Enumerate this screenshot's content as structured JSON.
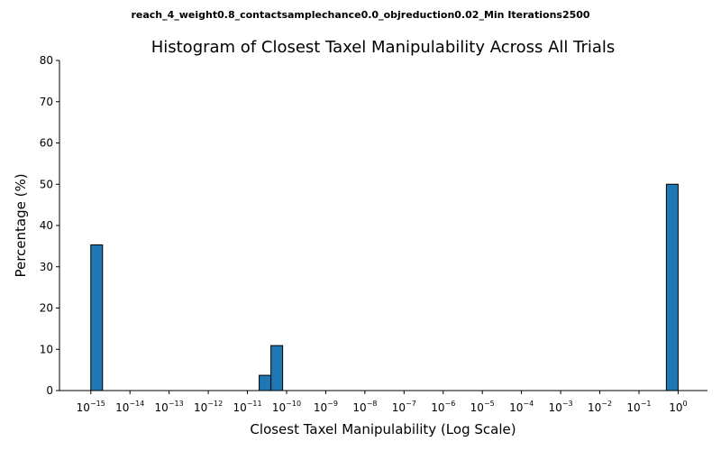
{
  "chart_data": {
    "type": "bar",
    "suptitle": "reach_4_weight0.8_contactsamplechance0.0_objreduction0.02_Min Iterations2500",
    "title": "Histogram of Closest Taxel Manipulability Across All Trials",
    "xlabel": "Closest Taxel Manipulability (Log Scale)",
    "ylabel": "Percentage (%)",
    "xscale": "log",
    "xlim_log10": [
      -15.8,
      0.75
    ],
    "ylim": [
      0,
      80
    ],
    "yticks": [
      "0",
      "10",
      "20",
      "30",
      "40",
      "50",
      "60",
      "70",
      "80"
    ],
    "xticks": [
      {
        "base": "10",
        "exp": "−15",
        "log10": -15
      },
      {
        "base": "10",
        "exp": "−14",
        "log10": -14
      },
      {
        "base": "10",
        "exp": "−13",
        "log10": -13
      },
      {
        "base": "10",
        "exp": "−12",
        "log10": -12
      },
      {
        "base": "10",
        "exp": "−11",
        "log10": -11
      },
      {
        "base": "10",
        "exp": "−10",
        "log10": -10
      },
      {
        "base": "10",
        "exp": "−9",
        "log10": -9
      },
      {
        "base": "10",
        "exp": "−8",
        "log10": -8
      },
      {
        "base": "10",
        "exp": "−7",
        "log10": -7
      },
      {
        "base": "10",
        "exp": "−6",
        "log10": -6
      },
      {
        "base": "10",
        "exp": "−5",
        "log10": -5
      },
      {
        "base": "10",
        "exp": "−4",
        "log10": -4
      },
      {
        "base": "10",
        "exp": "−3",
        "log10": -3
      },
      {
        "base": "10",
        "exp": "−2",
        "log10": -2
      },
      {
        "base": "10",
        "exp": "−1",
        "log10": -1
      },
      {
        "base": "10",
        "exp": "0",
        "log10": 0
      }
    ],
    "bins": [
      {
        "log10_start": -15.0,
        "log10_end": -14.7,
        "value": 35.3
      },
      {
        "log10_start": -10.7,
        "log10_end": -10.4,
        "value": 3.7
      },
      {
        "log10_start": -10.4,
        "log10_end": -10.1,
        "value": 10.9
      },
      {
        "log10_start": -0.3,
        "log10_end": 0.0,
        "value": 50.0
      }
    ],
    "bar_color": "#1f77b4",
    "grid": false
  }
}
